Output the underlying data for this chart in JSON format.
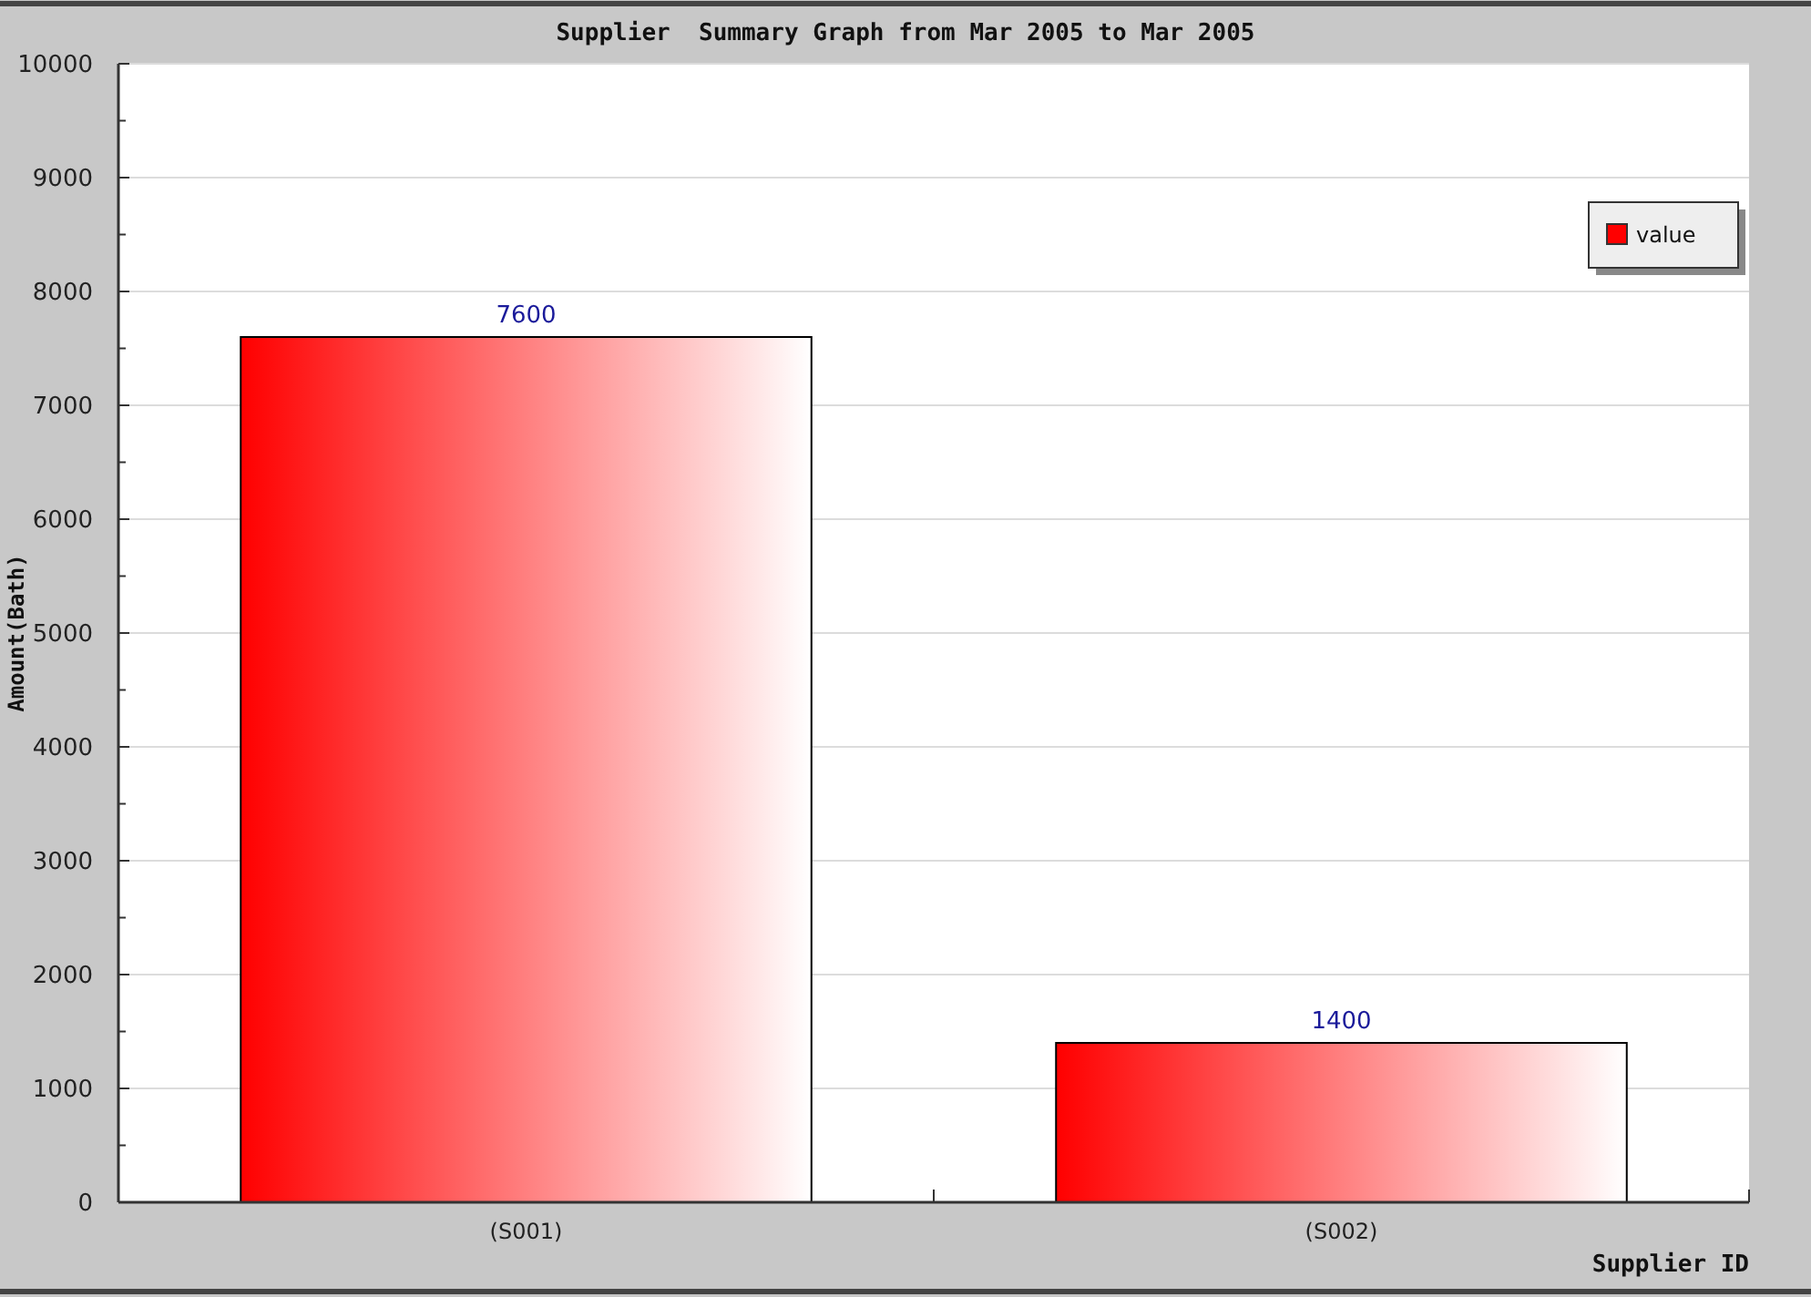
{
  "chart_data": {
    "type": "bar",
    "title": "Supplier  Summary Graph from Mar 2005 to Mar 2005",
    "xlabel": "Supplier ID",
    "ylabel": "Amount(Bath)",
    "categories": [
      "(S001)",
      "(S002)"
    ],
    "series": [
      {
        "name": "value",
        "color": "#ff0000",
        "values": [
          7600,
          1400
        ]
      }
    ],
    "ylim": [
      0,
      10000
    ],
    "yticks": [
      0,
      {
        "value": 500,
        "label": null
      },
      1000,
      {
        "value": 1500,
        "label": null
      },
      2000,
      {
        "value": 2500,
        "label": null
      },
      3000,
      {
        "value": 3500,
        "label": null
      },
      4000,
      {
        "value": 4500,
        "label": null
      },
      5000,
      {
        "value": 5500,
        "label": null
      },
      6000,
      {
        "value": 6500,
        "label": null
      },
      7000,
      {
        "value": 7500,
        "label": null
      },
      8000,
      {
        "value": 8500,
        "label": null
      },
      9000,
      {
        "value": 9500,
        "label": null
      },
      10000
    ],
    "grid": "y",
    "legend": "top right",
    "data_labels": true
  }
}
